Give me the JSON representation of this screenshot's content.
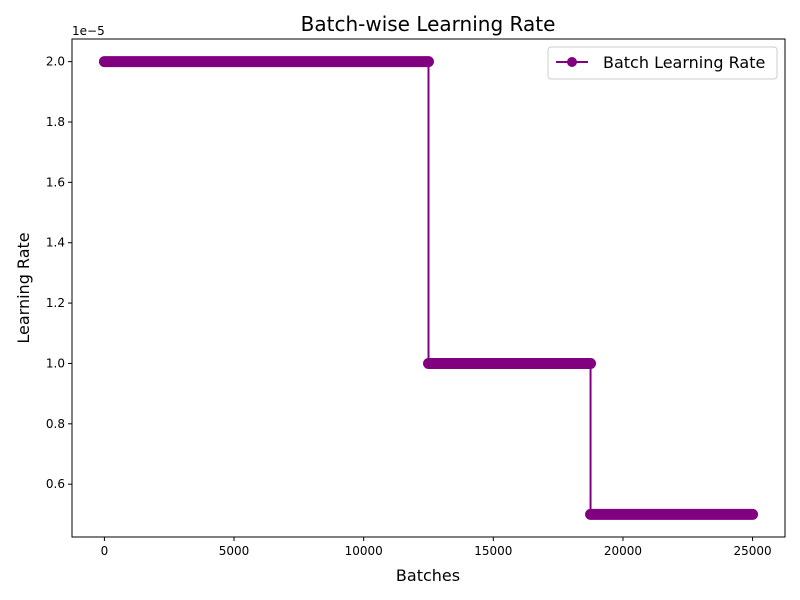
{
  "chart_data": {
    "type": "line",
    "title": "Batch-wise Learning Rate",
    "xlabel": "Batches",
    "ylabel": "Learning Rate",
    "y_offset_label": "1e−5",
    "xlim": [
      -1250,
      26250
    ],
    "ylim": [
      0.425,
      2.075
    ],
    "x_ticks": [
      0,
      5000,
      10000,
      15000,
      20000,
      25000
    ],
    "y_ticks": [
      0.6,
      0.8,
      1.0,
      1.2,
      1.4,
      1.6,
      1.8,
      2.0
    ],
    "x_tick_labels": [
      "0",
      "5000",
      "10000",
      "15000",
      "20000",
      "25000"
    ],
    "y_tick_labels": [
      "0.6",
      "0.8",
      "1.0",
      "1.2",
      "1.4",
      "1.6",
      "1.8",
      "2.0"
    ],
    "grid": false,
    "legend_position": "top-right",
    "series": [
      {
        "name": "Batch Learning Rate",
        "color": "#800080",
        "marker": "circle",
        "segments": [
          {
            "x_start": 0,
            "x_end": 12500,
            "y": 2.0
          },
          {
            "x_start": 12500,
            "x_end": 18750,
            "y": 1.0
          },
          {
            "x_start": 18750,
            "x_end": 25000,
            "y": 0.5
          }
        ]
      }
    ]
  }
}
